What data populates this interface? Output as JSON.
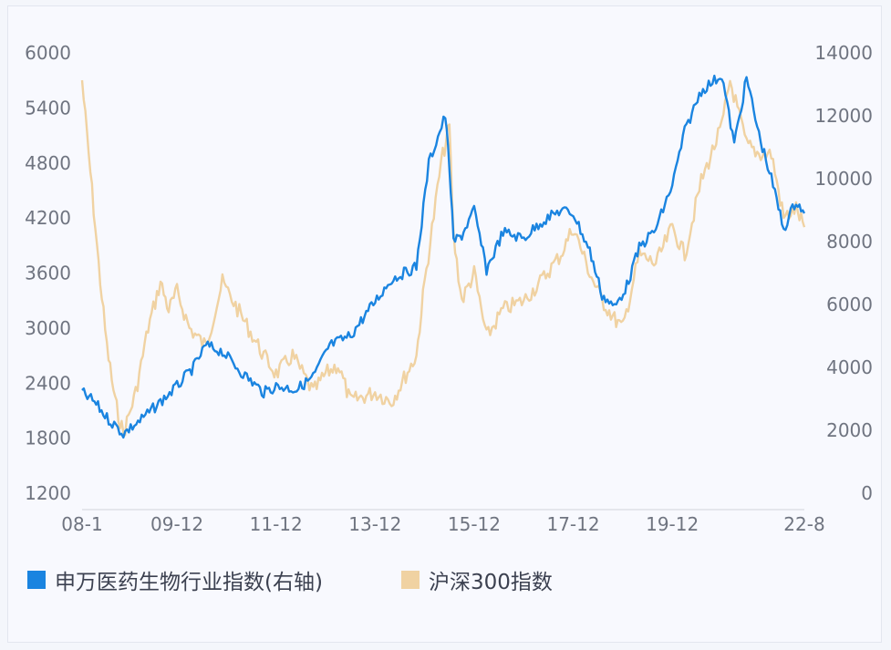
{
  "chart_data": {
    "type": "line",
    "title": "",
    "x_ticks": [
      "08-1",
      "09-12",
      "11-12",
      "13-12",
      "15-12",
      "17-12",
      "19-12",
      "22-8"
    ],
    "y_left": {
      "ticks": [
        1200,
        1800,
        2400,
        3000,
        3600,
        4200,
        4800,
        5400,
        6000
      ],
      "range": [
        1200,
        6000
      ]
    },
    "y_right": {
      "ticks": [
        0,
        2000,
        4000,
        6000,
        8000,
        10000,
        12000,
        14000
      ],
      "range": [
        0,
        14000
      ]
    },
    "grid": false,
    "legend_position": "bottom",
    "series": [
      {
        "name": "申万医药生物行业指数(右轴)",
        "axis": "right",
        "color": "#1a84e0",
        "x": [
          "2008-01",
          "2008-04",
          "2008-07",
          "2008-11",
          "2009-03",
          "2009-08",
          "2009-12",
          "2010-04",
          "2010-07",
          "2010-11",
          "2011-04",
          "2011-09",
          "2011-12",
          "2012-05",
          "2012-09",
          "2013-01",
          "2013-06",
          "2013-12",
          "2014-04",
          "2014-10",
          "2015-01",
          "2015-05",
          "2015-06",
          "2015-07",
          "2015-09",
          "2015-12",
          "2016-03",
          "2016-07",
          "2016-12",
          "2017-04",
          "2017-09",
          "2017-12",
          "2018-04",
          "2018-07",
          "2018-10",
          "2019-01",
          "2019-04",
          "2019-08",
          "2019-12",
          "2020-03",
          "2020-07",
          "2020-12",
          "2021-03",
          "2021-06",
          "2021-09",
          "2021-12",
          "2022-03",
          "2022-06",
          "2022-08"
        ],
        "values": [
          3200,
          2900,
          2400,
          1900,
          2300,
          2900,
          3400,
          4000,
          4700,
          4500,
          3800,
          3200,
          3400,
          3300,
          3700,
          4700,
          5000,
          6100,
          6800,
          7200,
          10500,
          12000,
          10400,
          8000,
          8200,
          9000,
          7100,
          8300,
          8100,
          8600,
          9000,
          8900,
          7700,
          6300,
          5900,
          6600,
          7800,
          8400,
          9800,
          11500,
          12800,
          13300,
          11100,
          13200,
          11400,
          10000,
          8400,
          9300,
          8900
        ]
      },
      {
        "name": "沪深300指数",
        "axis": "left",
        "color": "#f0d2a2",
        "x": [
          "2008-01",
          "2008-03",
          "2008-05",
          "2008-07",
          "2008-09",
          "2008-11",
          "2009-02",
          "2009-05",
          "2009-08",
          "2009-10",
          "2009-12",
          "2010-03",
          "2010-07",
          "2010-11",
          "2011-04",
          "2011-09",
          "2011-12",
          "2012-04",
          "2012-09",
          "2012-12",
          "2013-03",
          "2013-06",
          "2013-12",
          "2014-04",
          "2014-10",
          "2014-12",
          "2015-04",
          "2015-06",
          "2015-07",
          "2015-09",
          "2015-12",
          "2016-03",
          "2016-07",
          "2016-12",
          "2017-04",
          "2017-09",
          "2017-12",
          "2018-04",
          "2018-07",
          "2018-10",
          "2018-12",
          "2019-04",
          "2019-08",
          "2019-12",
          "2020-03",
          "2020-07",
          "2020-12",
          "2021-02",
          "2021-06",
          "2021-09",
          "2021-12",
          "2022-03",
          "2022-06",
          "2022-08"
        ],
        "values": [
          5700,
          4700,
          3700,
          2800,
          2200,
          1850,
          2300,
          3000,
          3500,
          3200,
          3400,
          3000,
          2800,
          3500,
          3100,
          2700,
          2500,
          2700,
          2300,
          2500,
          2600,
          2200,
          2300,
          2200,
          2700,
          3500,
          4800,
          5200,
          4000,
          3300,
          3600,
          2900,
          3200,
          3300,
          3500,
          3800,
          4100,
          3600,
          3300,
          3100,
          3000,
          3800,
          3700,
          4100,
          3800,
          4600,
          5200,
          5700,
          5000,
          4900,
          4900,
          4200,
          4300,
          4100
        ]
      }
    ]
  }
}
